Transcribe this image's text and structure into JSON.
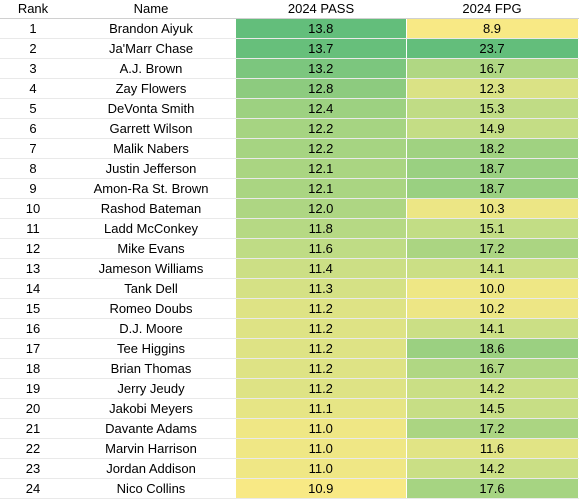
{
  "headers": {
    "rank": "Rank",
    "name": "Name",
    "pass": "2024 PASS",
    "fpg": "2024 FPG"
  },
  "scale": {
    "low": "#f8e985",
    "mid": "#c3dd85",
    "high": "#63be7b"
  },
  "rows": [
    {
      "rank": "1",
      "name": "Brandon Aiyuk",
      "pass": "13.8",
      "fpg": "8.9"
    },
    {
      "rank": "2",
      "name": "Ja'Marr Chase",
      "pass": "13.7",
      "fpg": "23.7"
    },
    {
      "rank": "3",
      "name": "A.J. Brown",
      "pass": "13.2",
      "fpg": "16.7"
    },
    {
      "rank": "4",
      "name": "Zay Flowers",
      "pass": "12.8",
      "fpg": "12.3"
    },
    {
      "rank": "5",
      "name": "DeVonta Smith",
      "pass": "12.4",
      "fpg": "15.3"
    },
    {
      "rank": "6",
      "name": "Garrett Wilson",
      "pass": "12.2",
      "fpg": "14.9"
    },
    {
      "rank": "7",
      "name": "Malik Nabers",
      "pass": "12.2",
      "fpg": "18.2"
    },
    {
      "rank": "8",
      "name": "Justin Jefferson",
      "pass": "12.1",
      "fpg": "18.7"
    },
    {
      "rank": "9",
      "name": "Amon-Ra St. Brown",
      "pass": "12.1",
      "fpg": "18.7"
    },
    {
      "rank": "10",
      "name": "Rashod Bateman",
      "pass": "12.0",
      "fpg": "10.3"
    },
    {
      "rank": "11",
      "name": "Ladd McConkey",
      "pass": "11.8",
      "fpg": "15.1"
    },
    {
      "rank": "12",
      "name": "Mike Evans",
      "pass": "11.6",
      "fpg": "17.2"
    },
    {
      "rank": "13",
      "name": "Jameson Williams",
      "pass": "11.4",
      "fpg": "14.1"
    },
    {
      "rank": "14",
      "name": "Tank Dell",
      "pass": "11.3",
      "fpg": "10.0"
    },
    {
      "rank": "15",
      "name": "Romeo Doubs",
      "pass": "11.2",
      "fpg": "10.2"
    },
    {
      "rank": "16",
      "name": "D.J. Moore",
      "pass": "11.2",
      "fpg": "14.1"
    },
    {
      "rank": "17",
      "name": "Tee Higgins",
      "pass": "11.2",
      "fpg": "18.6"
    },
    {
      "rank": "18",
      "name": "Brian Thomas",
      "pass": "11.2",
      "fpg": "16.7"
    },
    {
      "rank": "19",
      "name": "Jerry Jeudy",
      "pass": "11.2",
      "fpg": "14.2"
    },
    {
      "rank": "20",
      "name": "Jakobi Meyers",
      "pass": "11.1",
      "fpg": "14.5"
    },
    {
      "rank": "21",
      "name": "Davante Adams",
      "pass": "11.0",
      "fpg": "17.2"
    },
    {
      "rank": "22",
      "name": "Marvin Harrison",
      "pass": "11.0",
      "fpg": "11.6"
    },
    {
      "rank": "23",
      "name": "Jordan Addison",
      "pass": "11.0",
      "fpg": "14.2"
    },
    {
      "rank": "24",
      "name": "Nico Collins",
      "pass": "10.9",
      "fpg": "17.6"
    }
  ]
}
